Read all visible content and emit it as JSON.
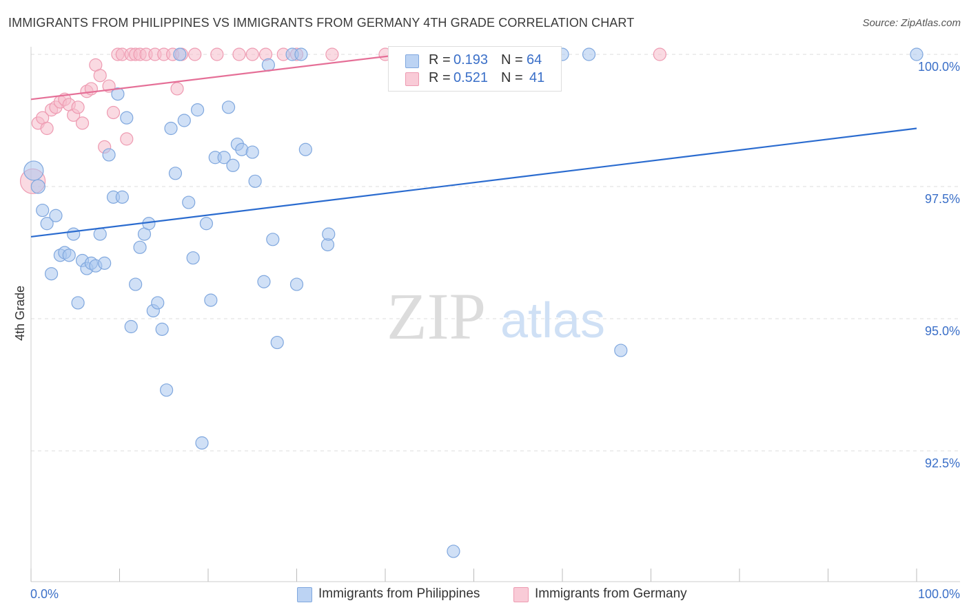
{
  "title": "IMMIGRANTS FROM PHILIPPINES VS IMMIGRANTS FROM GERMANY 4TH GRADE CORRELATION CHART",
  "source": "Source: ZipAtlas.com",
  "watermark": {
    "zip": "ZIP",
    "atlas": "atlas"
  },
  "colors": {
    "blue_fill": "#a9c6ee",
    "blue_stroke": "#7fa7de",
    "blue_line": "#2a6bcf",
    "pink_fill": "#f6bccb",
    "pink_stroke": "#ee9ab1",
    "pink_line": "#e56f97",
    "tick_label": "#3a6fc8",
    "grid": "#dddddd"
  },
  "legend": {
    "rows": [
      {
        "series": "blue",
        "r_label": "R =",
        "r_value": "0.193",
        "n_label": "N =",
        "n_value": "64"
      },
      {
        "series": "pink",
        "r_label": "R =",
        "r_value": "0.521",
        "n_label": "N =",
        "n_value": "41"
      }
    ]
  },
  "chart_data": {
    "type": "scatter",
    "title": "IMMIGRANTS FROM PHILIPPINES VS IMMIGRANTS FROM GERMANY 4TH GRADE CORRELATION CHART",
    "xlabel": "",
    "ylabel": "4th Grade",
    "xlim": [
      0,
      100
    ],
    "ylim": [
      90.25,
      100.5
    ],
    "x_tick_labels": [
      {
        "value": 0,
        "label": "0.0%"
      },
      {
        "value": 100,
        "label": "100.0%"
      }
    ],
    "y_ticks": [
      {
        "value": 100.0,
        "label": "100.0%"
      },
      {
        "value": 97.5,
        "label": "97.5%"
      },
      {
        "value": 95.0,
        "label": "95.0%"
      },
      {
        "value": 92.5,
        "label": "92.5%"
      }
    ],
    "series": [
      {
        "name": "Immigrants from Philippines",
        "color": "blue",
        "trend": {
          "x": [
            0,
            100
          ],
          "y": [
            96.55,
            98.6
          ]
        },
        "points": [
          [
            0.3,
            97.8,
            14
          ],
          [
            0.8,
            97.5,
            10
          ],
          [
            1.3,
            97.05,
            9
          ],
          [
            1.8,
            96.8,
            9
          ],
          [
            2.3,
            95.85,
            9
          ],
          [
            2.8,
            96.95,
            9
          ],
          [
            3.3,
            96.2,
            9
          ],
          [
            3.8,
            96.25,
            9
          ],
          [
            4.3,
            96.2,
            9
          ],
          [
            4.8,
            96.6,
            9
          ],
          [
            5.3,
            95.3,
            9
          ],
          [
            5.8,
            96.1,
            9
          ],
          [
            6.3,
            95.95,
            9
          ],
          [
            6.8,
            96.05,
            9
          ],
          [
            7.3,
            96.0,
            9
          ],
          [
            7.8,
            96.6,
            9
          ],
          [
            8.3,
            96.05,
            9
          ],
          [
            8.8,
            98.1,
            9
          ],
          [
            9.3,
            97.3,
            9
          ],
          [
            9.8,
            99.25,
            9
          ],
          [
            10.3,
            97.3,
            9
          ],
          [
            10.8,
            98.8,
            9
          ],
          [
            11.3,
            94.85,
            9
          ],
          [
            11.8,
            95.65,
            9
          ],
          [
            12.3,
            96.35,
            9
          ],
          [
            12.8,
            96.6,
            9
          ],
          [
            13.3,
            96.8,
            9
          ],
          [
            13.8,
            95.15,
            9
          ],
          [
            14.3,
            95.3,
            9
          ],
          [
            14.8,
            94.8,
            9
          ],
          [
            15.3,
            93.65,
            9
          ],
          [
            15.8,
            98.6,
            9
          ],
          [
            16.3,
            97.75,
            9
          ],
          [
            16.8,
            100.0,
            9
          ],
          [
            17.3,
            98.75,
            9
          ],
          [
            17.8,
            97.2,
            9
          ],
          [
            18.3,
            96.15,
            9
          ],
          [
            18.8,
            98.95,
            9
          ],
          [
            19.3,
            92.65,
            9
          ],
          [
            19.8,
            96.8,
            9
          ],
          [
            20.3,
            95.35,
            9
          ],
          [
            20.8,
            98.05,
            9
          ],
          [
            21.8,
            98.05,
            9
          ],
          [
            22.3,
            99.0,
            9
          ],
          [
            22.8,
            97.9,
            9
          ],
          [
            23.3,
            98.3,
            9
          ],
          [
            23.8,
            98.2,
            9
          ],
          [
            25.0,
            98.15,
            9
          ],
          [
            25.3,
            97.6,
            9
          ],
          [
            26.3,
            95.7,
            9
          ],
          [
            26.8,
            99.8,
            9
          ],
          [
            27.3,
            96.5,
            9
          ],
          [
            27.8,
            94.55,
            9
          ],
          [
            29.5,
            100.0,
            9
          ],
          [
            30.0,
            95.65,
            9
          ],
          [
            31.0,
            98.2,
            9
          ],
          [
            33.5,
            96.4,
            9
          ],
          [
            33.6,
            96.6,
            9
          ],
          [
            47.7,
            90.6,
            9
          ],
          [
            60.0,
            100.0,
            9
          ],
          [
            63.0,
            100.0,
            9
          ],
          [
            66.6,
            94.4,
            9
          ],
          [
            100.0,
            100.0,
            9
          ],
          [
            30.5,
            100.0,
            9
          ]
        ]
      },
      {
        "name": "Immigrants from Germany",
        "color": "pink",
        "trend": {
          "x": [
            0,
            42
          ],
          "y": [
            99.15,
            100.0
          ]
        },
        "points": [
          [
            0.2,
            97.6,
            18
          ],
          [
            0.8,
            98.7,
            9
          ],
          [
            1.3,
            98.8,
            9
          ],
          [
            1.8,
            98.6,
            9
          ],
          [
            2.3,
            98.95,
            9
          ],
          [
            2.8,
            99.0,
            9
          ],
          [
            3.3,
            99.1,
            9
          ],
          [
            3.8,
            99.15,
            9
          ],
          [
            4.3,
            99.05,
            9
          ],
          [
            4.8,
            98.85,
            9
          ],
          [
            5.3,
            99.0,
            9
          ],
          [
            5.8,
            98.7,
            9
          ],
          [
            6.3,
            99.3,
            9
          ],
          [
            6.8,
            99.35,
            9
          ],
          [
            7.3,
            99.8,
            9
          ],
          [
            7.8,
            99.6,
            9
          ],
          [
            8.3,
            98.25,
            9
          ],
          [
            8.8,
            99.4,
            9
          ],
          [
            9.3,
            98.9,
            9
          ],
          [
            9.8,
            100.0,
            9
          ],
          [
            10.3,
            100.0,
            9
          ],
          [
            10.8,
            98.4,
            9
          ],
          [
            11.3,
            100.0,
            9
          ],
          [
            11.8,
            100.0,
            9
          ],
          [
            12.3,
            100.0,
            9
          ],
          [
            13.0,
            100.0,
            9
          ],
          [
            14.0,
            100.0,
            9
          ],
          [
            15.0,
            100.0,
            9
          ],
          [
            16.0,
            100.0,
            9
          ],
          [
            16.5,
            99.35,
            9
          ],
          [
            17.0,
            100.0,
            9
          ],
          [
            18.5,
            100.0,
            9
          ],
          [
            21.0,
            100.0,
            9
          ],
          [
            23.5,
            100.0,
            9
          ],
          [
            25.0,
            100.0,
            9
          ],
          [
            26.5,
            100.0,
            9
          ],
          [
            28.5,
            100.0,
            9
          ],
          [
            30.0,
            100.0,
            9
          ],
          [
            34.0,
            100.0,
            9
          ],
          [
            40.0,
            100.0,
            9
          ],
          [
            71.0,
            100.0,
            9
          ]
        ]
      }
    ]
  }
}
